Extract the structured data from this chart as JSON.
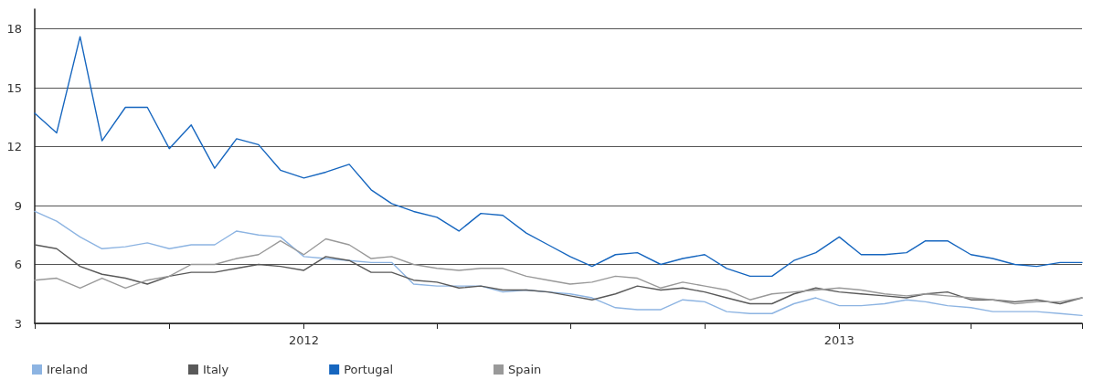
{
  "chart_data": {
    "type": "line",
    "x": [
      "2011-07-01",
      "2011-07-16",
      "2011-08-01",
      "2011-08-16",
      "2011-09-01",
      "2011-09-16",
      "2011-10-01",
      "2011-10-16",
      "2011-11-01",
      "2011-11-16",
      "2011-12-01",
      "2011-12-16",
      "2012-01-01",
      "2012-01-16",
      "2012-02-01",
      "2012-02-16",
      "2012-03-01",
      "2012-03-16",
      "2012-04-01",
      "2012-04-16",
      "2012-05-01",
      "2012-05-16",
      "2012-06-01",
      "2012-06-16",
      "2012-07-01",
      "2012-07-16",
      "2012-08-01",
      "2012-08-16",
      "2012-09-01",
      "2012-09-16",
      "2012-10-01",
      "2012-10-16",
      "2012-11-01",
      "2012-11-16",
      "2012-12-01",
      "2012-12-16",
      "2013-01-01",
      "2013-01-16",
      "2013-02-01",
      "2013-02-16",
      "2013-03-01",
      "2013-03-16",
      "2013-04-01",
      "2013-04-16",
      "2013-05-01",
      "2013-05-16",
      "2013-06-01",
      "2013-06-16"
    ],
    "series": [
      {
        "name": "Ireland",
        "color": "#8db4e2",
        "values": [
          8.7,
          8.2,
          7.4,
          6.8,
          6.9,
          7.1,
          6.8,
          7.0,
          7.0,
          7.7,
          7.5,
          7.4,
          6.4,
          6.3,
          6.2,
          6.1,
          6.1,
          5.0,
          4.9,
          4.9,
          4.9,
          4.6,
          4.7,
          4.6,
          4.5,
          4.3,
          3.8,
          3.7,
          3.7,
          4.2,
          4.1,
          3.6,
          3.5,
          3.5,
          4.0,
          4.3,
          3.9,
          3.9,
          4.0,
          4.2,
          4.1,
          3.9,
          3.8,
          3.6,
          3.6,
          3.6,
          3.5,
          3.4
        ]
      },
      {
        "name": "Italy",
        "color": "#595959",
        "values": [
          7.0,
          6.8,
          5.9,
          5.5,
          5.3,
          5.0,
          5.4,
          5.6,
          5.6,
          5.8,
          6.0,
          5.9,
          5.7,
          6.4,
          6.2,
          5.6,
          5.6,
          5.2,
          5.1,
          4.8,
          4.9,
          4.7,
          4.7,
          4.6,
          4.4,
          4.2,
          4.5,
          4.9,
          4.7,
          4.8,
          4.6,
          4.3,
          4.0,
          4.0,
          4.5,
          4.8,
          4.6,
          4.5,
          4.4,
          4.3,
          4.5,
          4.6,
          4.2,
          4.2,
          4.1,
          4.2,
          4.0,
          4.3
        ]
      },
      {
        "name": "Portugal",
        "color": "#1666bf",
        "values": [
          13.7,
          12.7,
          17.6,
          12.3,
          14.0,
          14.0,
          11.9,
          13.1,
          10.9,
          12.4,
          12.1,
          10.8,
          10.4,
          10.7,
          11.1,
          9.8,
          9.1,
          8.7,
          8.4,
          7.7,
          8.6,
          8.5,
          7.6,
          7.0,
          6.4,
          5.9,
          6.5,
          6.6,
          6.0,
          6.3,
          6.5,
          5.8,
          5.4,
          5.4,
          6.2,
          6.6,
          7.4,
          6.5,
          6.5,
          6.6,
          7.2,
          7.2,
          6.5,
          6.3,
          6.0,
          5.9,
          6.1,
          6.1
        ]
      },
      {
        "name": "Spain",
        "color": "#999999",
        "values": [
          5.2,
          5.3,
          4.8,
          5.3,
          4.8,
          5.2,
          5.4,
          6.0,
          6.0,
          6.3,
          6.5,
          7.2,
          6.5,
          7.3,
          7.0,
          6.3,
          6.4,
          6.0,
          5.8,
          5.7,
          5.8,
          5.8,
          5.4,
          5.2,
          5.0,
          5.1,
          5.4,
          5.3,
          4.8,
          5.1,
          4.9,
          4.7,
          4.2,
          4.5,
          4.6,
          4.7,
          4.8,
          4.7,
          4.5,
          4.4,
          4.5,
          4.4,
          4.3,
          4.2,
          4.0,
          4.1,
          4.1,
          4.3
        ]
      }
    ],
    "xlim": [
      "2011-07-01",
      "2013-06-16"
    ],
    "xticks": [
      {
        "value": "2011-07-01",
        "label": null
      },
      {
        "value": "2011-10-01",
        "label": null
      },
      {
        "value": "2012-01-01",
        "label": "2012"
      },
      {
        "value": "2012-04-01",
        "label": null
      },
      {
        "value": "2012-07-01",
        "label": null
      },
      {
        "value": "2012-10-01",
        "label": null
      },
      {
        "value": "2013-01-01",
        "label": "2013"
      },
      {
        "value": "2013-04-01",
        "label": null
      },
      {
        "value": "2013-06-16",
        "label": null
      }
    ],
    "ylim": [
      3,
      19
    ],
    "yticks": [
      3,
      6,
      9,
      12,
      15,
      18
    ],
    "grid": "y",
    "legend": "bottom left",
    "marker": "none",
    "line_style": "solid"
  }
}
